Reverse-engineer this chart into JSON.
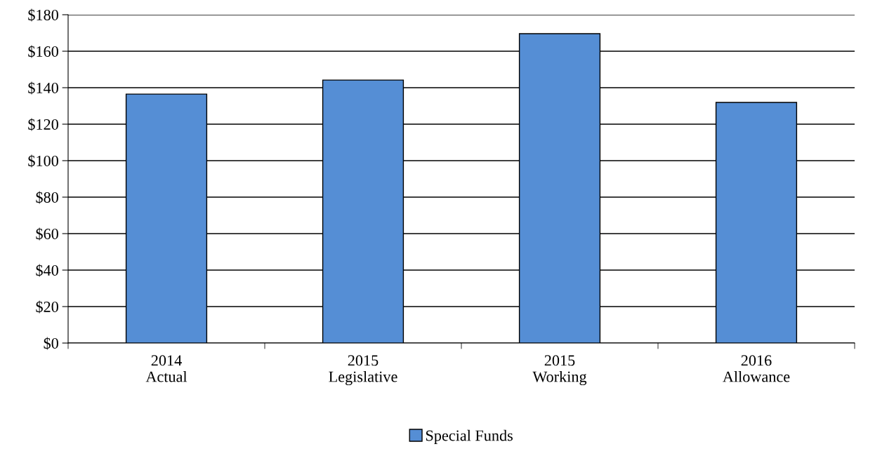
{
  "chart_data": {
    "type": "bar",
    "categories": [
      "2014\nActual",
      "2015\nLegislative",
      "2015\nWorking",
      "2016\nAllowance"
    ],
    "series": [
      {
        "name": "Special Funds",
        "color": "#558ed5",
        "values": [
          136.5,
          144.2,
          169.6,
          131.9
        ]
      }
    ],
    "ylim": [
      0,
      180
    ],
    "yticks": [
      {
        "value": 0,
        "label": "$0"
      },
      {
        "value": 20,
        "label": "$20"
      },
      {
        "value": 40,
        "label": "$40"
      },
      {
        "value": 60,
        "label": "$60"
      },
      {
        "value": 80,
        "label": "$80"
      },
      {
        "value": 100,
        "label": "$100"
      },
      {
        "value": 120,
        "label": "$120"
      },
      {
        "value": 140,
        "label": "$140"
      },
      {
        "value": 160,
        "label": "$160"
      },
      {
        "value": 180,
        "label": "$180"
      }
    ],
    "grid": "y",
    "legend": "bottom"
  }
}
